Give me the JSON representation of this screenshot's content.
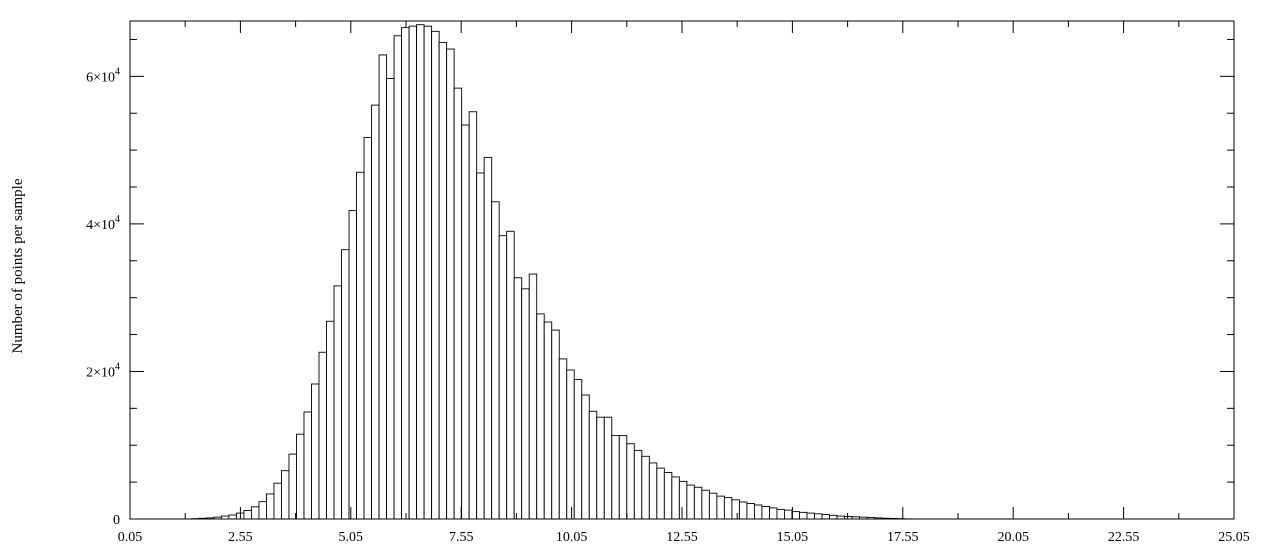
{
  "chart_data": {
    "type": "bar",
    "title": "",
    "xlabel": "",
    "ylabel": "Number of points per sample",
    "xlim": [
      0.05,
      25.05
    ],
    "ylim": [
      0,
      67500
    ],
    "grid": false,
    "x_ticks": [
      {
        "value": 0.05,
        "label": "0.05"
      },
      {
        "value": 2.55,
        "label": "2.55"
      },
      {
        "value": 5.05,
        "label": "5.05"
      },
      {
        "value": 7.55,
        "label": "7.55"
      },
      {
        "value": 10.05,
        "label": "10.05"
      },
      {
        "value": 12.55,
        "label": "12.55"
      },
      {
        "value": 15.05,
        "label": "15.05"
      },
      {
        "value": 17.55,
        "label": "17.55"
      },
      {
        "value": 20.05,
        "label": "20.05"
      },
      {
        "value": 22.55,
        "label": "22.55"
      },
      {
        "value": 25.05,
        "label": "25.05"
      }
    ],
    "y_ticks": [
      {
        "value": 0,
        "label": "0",
        "exp": ""
      },
      {
        "value": 20000,
        "label": "2×10",
        "exp": "4"
      },
      {
        "value": 40000,
        "label": "4×10",
        "exp": "4"
      },
      {
        "value": 60000,
        "label": "6×10",
        "exp": "4"
      }
    ],
    "bin_start": 1.1,
    "bin_width": 0.17,
    "values": [
      0,
      0,
      50,
      100,
      150,
      250,
      400,
      550,
      800,
      1150,
      1650,
      2350,
      3400,
      4850,
      6550,
      8800,
      11500,
      14500,
      18300,
      22600,
      26800,
      31600,
      36500,
      41800,
      47000,
      51700,
      56100,
      62900,
      59700,
      65500,
      66600,
      66800,
      67000,
      66800,
      66100,
      64600,
      63700,
      58400,
      53400,
      55200,
      46900,
      49000,
      43000,
      38400,
      39000,
      32700,
      31200,
      33200,
      27800,
      26700,
      25600,
      21700,
      20200,
      18900,
      16800,
      14600,
      13800,
      13800,
      11300,
      11300,
      10200,
      9300,
      8500,
      7600,
      6900,
      6300,
      5700,
      5100,
      4600,
      4300,
      3900,
      3500,
      3100,
      2900,
      2600,
      2300,
      2100,
      1900,
      1700,
      1500,
      1300,
      1200,
      1000,
      900,
      800,
      700,
      600,
      500,
      400,
      350,
      300,
      250,
      200,
      150,
      100,
      80,
      50,
      20
    ]
  }
}
